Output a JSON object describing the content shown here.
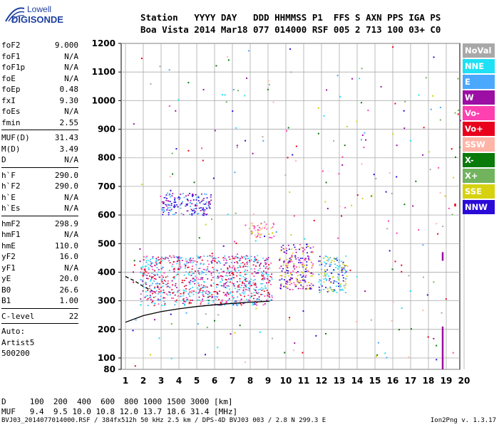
{
  "logo": {
    "line1": "Lowell",
    "line2": "DIGISONDE"
  },
  "header": {
    "line1": "Station   YYYY DAY   DDD HHMMSS P1  FFS S AXN PPS IGA PS",
    "line2": "Boa Vista 2014 Mar18 077 014000 RSF 005 2 713 100 03+ C0"
  },
  "params": {
    "group1": [
      {
        "k": "foF2",
        "v": "9.000"
      },
      {
        "k": "foF1",
        "v": "N/A"
      },
      {
        "k": "foF1p",
        "v": "N/A"
      },
      {
        "k": "foE",
        "v": "N/A"
      },
      {
        "k": "foEp",
        "v": "0.48"
      },
      {
        "k": "fxI",
        "v": "9.30"
      },
      {
        "k": "foEs",
        "v": "N/A"
      },
      {
        "k": "fmin",
        "v": "2.55"
      }
    ],
    "group2": [
      {
        "k": "MUF(D)",
        "v": "31.43"
      },
      {
        "k": "M(D)",
        "v": "3.49"
      },
      {
        "k": "D",
        "v": "N/A"
      }
    ],
    "group3": [
      {
        "k": "h`F",
        "v": "290.0"
      },
      {
        "k": "h`F2",
        "v": "290.0"
      },
      {
        "k": "h`E",
        "v": "N/A"
      },
      {
        "k": "h`Es",
        "v": "N/A"
      }
    ],
    "group4": [
      {
        "k": "hmF2",
        "v": "298.9"
      },
      {
        "k": "hmF1",
        "v": "N/A"
      },
      {
        "k": "hmE",
        "v": "110.0"
      },
      {
        "k": "yF2",
        "v": "16.0"
      },
      {
        "k": "yF1",
        "v": "N/A"
      },
      {
        "k": "yE",
        "v": "20.0"
      },
      {
        "k": "B0",
        "v": "26.6"
      },
      {
        "k": "B1",
        "v": "1.00"
      }
    ],
    "group5": [
      {
        "k": "C-level",
        "v": "22"
      }
    ],
    "auto": [
      "Auto:",
      "Artist5",
      "500200"
    ]
  },
  "legend": [
    {
      "label": "NoVal",
      "color": "#a8a8a8"
    },
    {
      "label": "NNE",
      "color": "#1fe0f4"
    },
    {
      "label": "E",
      "color": "#4aa8ff"
    },
    {
      "label": "W",
      "color": "#9b0fa4"
    },
    {
      "label": "Vo-",
      "color": "#ff40b0"
    },
    {
      "label": "Vo+",
      "color": "#e8001c"
    },
    {
      "label": "SSW",
      "color": "#ffb4a8"
    },
    {
      "label": "X-",
      "color": "#0a7a0a"
    },
    {
      "label": "X+",
      "color": "#72b45e"
    },
    {
      "label": "SSE",
      "color": "#d6d210"
    },
    {
      "label": "NNW",
      "color": "#2a0ad8"
    }
  ],
  "footer": {
    "line1": "D     100  200  400  600  800 1000 1500 3000 [km]",
    "line2": "MUF   9.4  9.5 10.0 10.8 12.0 13.7 18.6 31.4 [MHz]",
    "line3": "BVJ03_2014077014000.RSF / 384fx512h 50 kHz 2.5 km / DPS-4D BVJ03 003 / 2.8 N 299.3 E",
    "version": "Ion2Png v. 1.3.17"
  },
  "chart_data": {
    "type": "scatter",
    "xlabel": "",
    "ylabel": "",
    "xlim": [
      1,
      20
    ],
    "ylim": [
      80,
      1200
    ],
    "x_ticks": [
      1,
      2,
      3,
      4,
      5,
      6,
      7,
      8,
      9,
      10,
      11,
      12,
      13,
      14,
      15,
      16,
      17,
      18,
      19,
      20
    ],
    "y_ticks": [
      80,
      100,
      200,
      300,
      400,
      500,
      600,
      700,
      800,
      900,
      1000,
      1100,
      1200
    ],
    "grid": true,
    "legend_position": "right",
    "regions": [
      {
        "name": "F-trace main",
        "x": [
          1.8,
          9.2
        ],
        "y": [
          285,
          460
        ],
        "colors": [
          "#1fe0f4",
          "#4aa8ff",
          "#9b0fa4",
          "#ff40b0",
          "#e8001c"
        ]
      },
      {
        "name": "F-trace upper",
        "x": [
          9.6,
          11.5
        ],
        "y": [
          340,
          500
        ],
        "colors": [
          "#2a0ad8",
          "#9b0fa4",
          "#d6d210",
          "#ff40b0"
        ]
      },
      {
        "name": "tail",
        "x": [
          11.8,
          13.4
        ],
        "y": [
          330,
          460
        ],
        "colors": [
          "#2a0ad8",
          "#1fe0f4",
          "#d6d210",
          "#4aa8ff"
        ]
      },
      {
        "name": "cluster 560",
        "x": [
          8.0,
          9.3
        ],
        "y": [
          520,
          575
        ],
        "colors": [
          "#d6d210",
          "#ffb4a8",
          "#ff40b0"
        ]
      },
      {
        "name": "cluster 640",
        "x": [
          3.0,
          5.8
        ],
        "y": [
          600,
          680
        ],
        "colors": [
          "#9b0fa4",
          "#4aa8ff",
          "#2a0ad8"
        ]
      }
    ],
    "curves": [
      {
        "name": "profile",
        "points": [
          [
            1,
            225
          ],
          [
            2,
            248
          ],
          [
            3,
            262
          ],
          [
            4,
            272
          ],
          [
            5,
            280
          ],
          [
            6,
            286
          ],
          [
            7,
            291
          ],
          [
            8,
            295
          ],
          [
            9,
            298
          ],
          [
            9.1,
            299
          ]
        ]
      },
      {
        "name": "profile-dash",
        "points": [
          [
            1,
            385
          ],
          [
            1.5,
            370
          ],
          [
            2,
            350
          ],
          [
            2.5,
            335
          ]
        ]
      }
    ],
    "verticals": [
      {
        "x": 18.8,
        "y": [
          80,
          210
        ],
        "color": "#9b0fa4"
      },
      {
        "x": 18.8,
        "y": [
          440,
          470
        ],
        "color": "#9b0fa4"
      },
      {
        "x": 19.5,
        "y": [
          630,
          640
        ],
        "color": "#e8001c"
      }
    ]
  }
}
